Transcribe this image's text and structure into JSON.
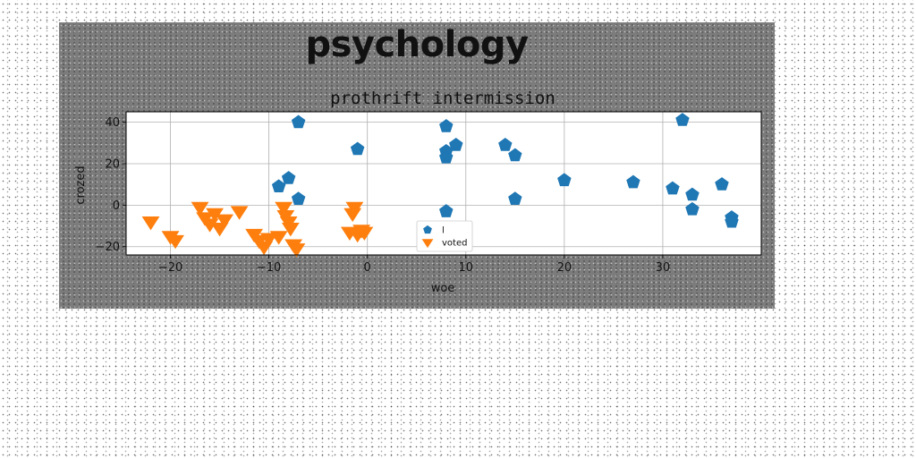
{
  "figure_title": "psychology",
  "chart_data": {
    "type": "scatter",
    "title": "prothrift intermission",
    "xlabel": "woe",
    "ylabel": "crozed",
    "xlim": [
      -24.5,
      40
    ],
    "ylim": [
      -24,
      45
    ],
    "xticks": [
      -20,
      -10,
      0,
      10,
      20,
      30
    ],
    "yticks": [
      -20,
      0,
      20,
      40
    ],
    "grid": true,
    "legend_position": "lower-center",
    "series": [
      {
        "name": "l",
        "marker": "pentagon",
        "color": "#1f77b4",
        "points": [
          [
            -7,
            40
          ],
          [
            -1,
            27
          ],
          [
            -8,
            13
          ],
          [
            -9,
            9
          ],
          [
            -7,
            3
          ],
          [
            8,
            38
          ],
          [
            8,
            26
          ],
          [
            8,
            23
          ],
          [
            9,
            29
          ],
          [
            8,
            -3
          ],
          [
            14,
            29
          ],
          [
            15,
            24
          ],
          [
            15,
            3
          ],
          [
            20,
            12
          ],
          [
            27,
            11
          ],
          [
            31,
            8
          ],
          [
            32,
            41
          ],
          [
            33,
            5
          ],
          [
            33,
            -2
          ],
          [
            36,
            10
          ],
          [
            37,
            -6
          ],
          [
            37,
            -8
          ]
        ]
      },
      {
        "name": "voted",
        "marker": "triangle-down",
        "color": "#ff7f0e",
        "points": [
          [
            -22,
            -8
          ],
          [
            -20,
            -15
          ],
          [
            -19.5,
            -17
          ],
          [
            -17,
            -1
          ],
          [
            -16.5,
            -6
          ],
          [
            -16,
            -9
          ],
          [
            -15.5,
            -4
          ],
          [
            -15,
            -11
          ],
          [
            -14.5,
            -7
          ],
          [
            -13,
            -3
          ],
          [
            -11.5,
            -14
          ],
          [
            -11,
            -17
          ],
          [
            -10.5,
            -20
          ],
          [
            -10,
            -16
          ],
          [
            -9,
            -15
          ],
          [
            -8.5,
            -1
          ],
          [
            -8.3,
            -5
          ],
          [
            -8,
            -8
          ],
          [
            -7.8,
            -11
          ],
          [
            -7.5,
            -19
          ],
          [
            -7.2,
            -21
          ],
          [
            -1.5,
            -4
          ],
          [
            -1.3,
            -1
          ],
          [
            -1.8,
            -13
          ],
          [
            -1,
            -14
          ],
          [
            -0.6,
            -12
          ],
          [
            -0.3,
            -13
          ]
        ]
      }
    ]
  }
}
